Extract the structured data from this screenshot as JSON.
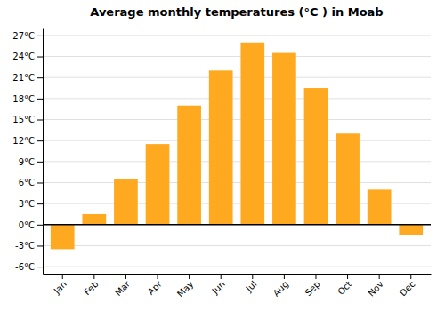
{
  "chart_data": {
    "type": "bar",
    "title": "Average monthly temperatures (°C ) in Moab",
    "categories": [
      "Jan",
      "Feb",
      "Mar",
      "Apr",
      "May",
      "Jun",
      "Jul",
      "Aug",
      "Sep",
      "Oct",
      "Nov",
      "Dec"
    ],
    "values": [
      -3.5,
      1.5,
      6.5,
      11.5,
      17.0,
      22.0,
      26.0,
      24.5,
      19.5,
      13.0,
      5.0,
      -1.5
    ],
    "color": "#FFA920",
    "ylim": [
      -7,
      28
    ],
    "yticks": [
      {
        "value": -6,
        "label": "-6°C"
      },
      {
        "value": -3,
        "label": "-3°C"
      },
      {
        "value": 0,
        "label": "0°C"
      },
      {
        "value": 3,
        "label": "3°C"
      },
      {
        "value": 6,
        "label": "6°C"
      },
      {
        "value": 9,
        "label": "9°C"
      },
      {
        "value": 12,
        "label": "12°C"
      },
      {
        "value": 15,
        "label": "15°C"
      },
      {
        "value": 18,
        "label": "18°C"
      },
      {
        "value": 21,
        "label": "21°C"
      },
      {
        "value": 24,
        "label": "24°C"
      },
      {
        "value": 27,
        "label": "27°C"
      }
    ],
    "grid": true
  }
}
